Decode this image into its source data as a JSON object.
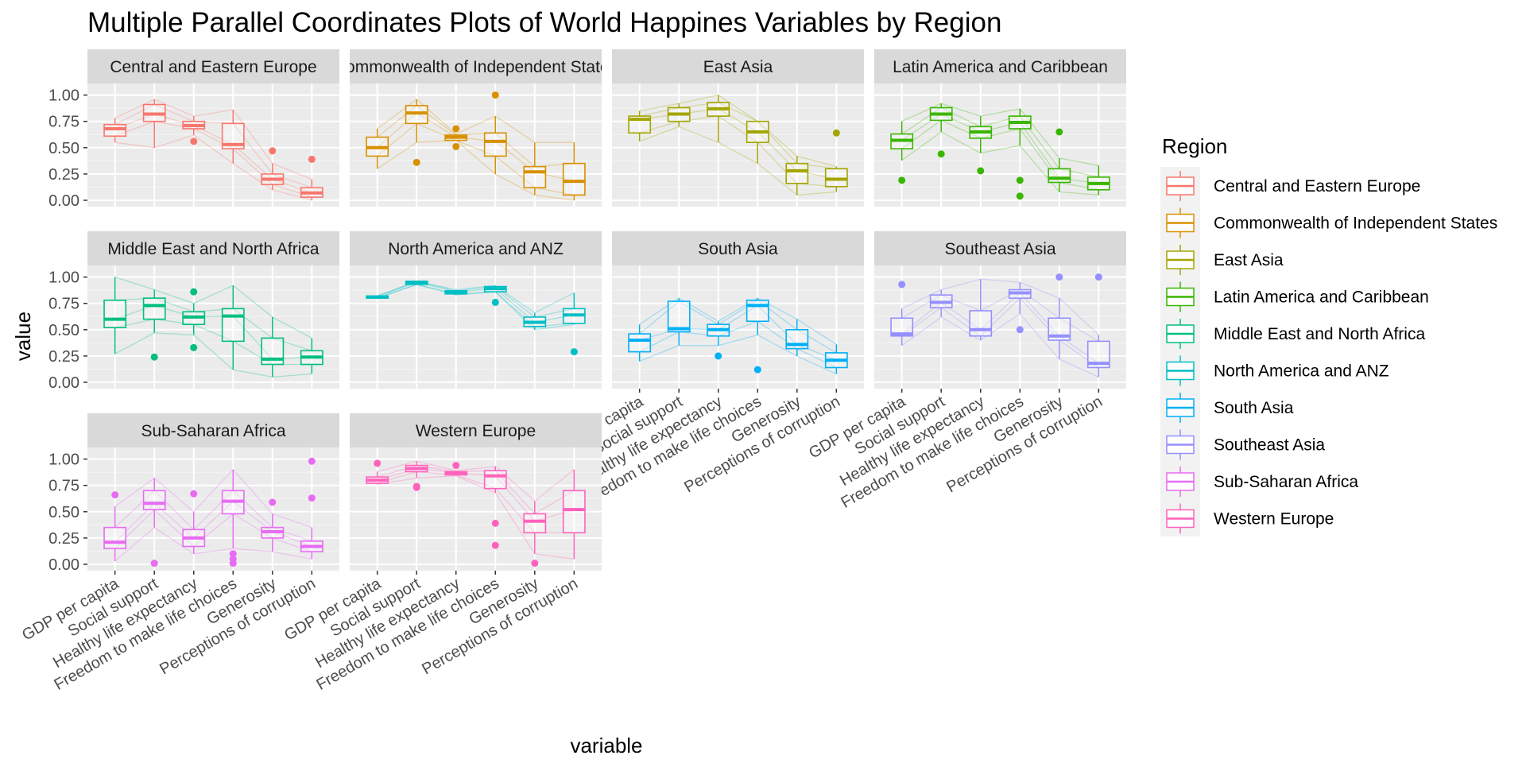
{
  "chart_data": {
    "type": "boxplot",
    "title": "Multiple Parallel Coordinates Plots of World Happines Variables by Region",
    "xlabel": "variable",
    "ylabel": "value",
    "ylim": [
      0,
      1.05
    ],
    "y_ticks": [
      "0.00",
      "0.25",
      "0.50",
      "0.75",
      "1.00"
    ],
    "categories": [
      "GDP per capita",
      "Social support",
      "Healthy life expectancy",
      "Freedom to make life choices",
      "Generosity",
      "Perceptions of corruption"
    ],
    "legend_title": "Region",
    "colors": {
      "Central and Eastern Europe": "#F8766D",
      "Commonwealth of Independent States": "#D89000",
      "East Asia": "#A3A500",
      "Latin America and Caribbean": "#39B600",
      "Middle East and North Africa": "#00BF7D",
      "North America and ANZ": "#00BFC4",
      "South Asia": "#00B0F6",
      "Southeast Asia": "#9590FF",
      "Sub-Saharan Africa": "#E76BF3",
      "Western Europe": "#FF62BC"
    },
    "panels": [
      {
        "region": "Central and Eastern Europe",
        "label": "Central and Eastern Europe",
        "boxes": [
          {
            "min": 0.55,
            "q1": 0.61,
            "median": 0.68,
            "q3": 0.72,
            "max": 0.78,
            "outliers": []
          },
          {
            "min": 0.5,
            "q1": 0.75,
            "median": 0.82,
            "q3": 0.91,
            "max": 0.96,
            "outliers": []
          },
          {
            "min": 0.62,
            "q1": 0.68,
            "median": 0.71,
            "q3": 0.75,
            "max": 0.8,
            "outliers": [
              0.56
            ]
          },
          {
            "min": 0.35,
            "q1": 0.49,
            "median": 0.53,
            "q3": 0.73,
            "max": 0.86,
            "outliers": []
          },
          {
            "min": 0.1,
            "q1": 0.15,
            "median": 0.2,
            "q3": 0.25,
            "max": 0.35,
            "outliers": [
              0.47
            ]
          },
          {
            "min": 0.0,
            "q1": 0.03,
            "median": 0.07,
            "q3": 0.12,
            "max": 0.2,
            "outliers": [
              0.39
            ]
          }
        ]
      },
      {
        "region": "Commonwealth of Independent States",
        "label": "Commonwealth of Independent States",
        "boxes": [
          {
            "min": 0.3,
            "q1": 0.42,
            "median": 0.5,
            "q3": 0.6,
            "max": 0.68,
            "outliers": []
          },
          {
            "min": 0.55,
            "q1": 0.73,
            "median": 0.83,
            "q3": 0.9,
            "max": 0.96,
            "outliers": [
              0.36
            ]
          },
          {
            "min": 0.57,
            "q1": 0.57,
            "median": 0.6,
            "q3": 0.62,
            "max": 0.63,
            "outliers": [
              0.68,
              0.51
            ]
          },
          {
            "min": 0.25,
            "q1": 0.42,
            "median": 0.56,
            "q3": 0.64,
            "max": 0.8,
            "outliers": [
              1.0
            ]
          },
          {
            "min": 0.05,
            "q1": 0.12,
            "median": 0.27,
            "q3": 0.32,
            "max": 0.55,
            "outliers": []
          },
          {
            "min": 0.0,
            "q1": 0.05,
            "median": 0.18,
            "q3": 0.35,
            "max": 0.55,
            "outliers": []
          }
        ]
      },
      {
        "region": "East Asia",
        "label": "East Asia",
        "boxes": [
          {
            "min": 0.56,
            "q1": 0.64,
            "median": 0.77,
            "q3": 0.8,
            "max": 0.85,
            "outliers": []
          },
          {
            "min": 0.7,
            "q1": 0.75,
            "median": 0.82,
            "q3": 0.88,
            "max": 0.92,
            "outliers": []
          },
          {
            "min": 0.55,
            "q1": 0.8,
            "median": 0.87,
            "q3": 0.93,
            "max": 1.0,
            "outliers": []
          },
          {
            "min": 0.35,
            "q1": 0.55,
            "median": 0.65,
            "q3": 0.75,
            "max": 0.75,
            "outliers": []
          },
          {
            "min": 0.05,
            "q1": 0.16,
            "median": 0.28,
            "q3": 0.35,
            "max": 0.42,
            "outliers": []
          },
          {
            "min": 0.08,
            "q1": 0.13,
            "median": 0.2,
            "q3": 0.3,
            "max": 0.32,
            "outliers": [
              0.64
            ]
          }
        ]
      },
      {
        "region": "Latin America and Caribbean",
        "label": "Latin America and Caribbean",
        "boxes": [
          {
            "min": 0.38,
            "q1": 0.49,
            "median": 0.57,
            "q3": 0.63,
            "max": 0.75,
            "outliers": [
              0.19
            ]
          },
          {
            "min": 0.65,
            "q1": 0.76,
            "median": 0.82,
            "q3": 0.88,
            "max": 0.92,
            "outliers": [
              0.44
            ]
          },
          {
            "min": 0.45,
            "q1": 0.59,
            "median": 0.65,
            "q3": 0.7,
            "max": 0.8,
            "outliers": [
              0.28
            ]
          },
          {
            "min": 0.52,
            "q1": 0.68,
            "median": 0.74,
            "q3": 0.8,
            "max": 0.87,
            "outliers": [
              0.19,
              0.04
            ]
          },
          {
            "min": 0.08,
            "q1": 0.17,
            "median": 0.21,
            "q3": 0.3,
            "max": 0.4,
            "outliers": [
              0.65
            ]
          },
          {
            "min": 0.05,
            "q1": 0.1,
            "median": 0.16,
            "q3": 0.22,
            "max": 0.33,
            "outliers": []
          }
        ]
      },
      {
        "region": "Middle East and North Africa",
        "label": "Middle East and North Africa",
        "boxes": [
          {
            "min": 0.27,
            "q1": 0.52,
            "median": 0.6,
            "q3": 0.78,
            "max": 1.0,
            "outliers": []
          },
          {
            "min": 0.47,
            "q1": 0.6,
            "median": 0.73,
            "q3": 0.8,
            "max": 0.88,
            "outliers": [
              0.24
            ]
          },
          {
            "min": 0.45,
            "q1": 0.55,
            "median": 0.62,
            "q3": 0.67,
            "max": 0.75,
            "outliers": [
              0.86,
              0.33
            ]
          },
          {
            "min": 0.12,
            "q1": 0.39,
            "median": 0.63,
            "q3": 0.7,
            "max": 0.92,
            "outliers": []
          },
          {
            "min": 0.05,
            "q1": 0.17,
            "median": 0.22,
            "q3": 0.42,
            "max": 0.62,
            "outliers": []
          },
          {
            "min": 0.08,
            "q1": 0.17,
            "median": 0.24,
            "q3": 0.3,
            "max": 0.42,
            "outliers": []
          }
        ]
      },
      {
        "region": "North America and ANZ",
        "label": "North America and ANZ",
        "boxes": [
          {
            "min": 0.8,
            "q1": 0.8,
            "median": 0.81,
            "q3": 0.82,
            "max": 0.82,
            "outliers": []
          },
          {
            "min": 0.93,
            "q1": 0.93,
            "median": 0.95,
            "q3": 0.96,
            "max": 0.96,
            "outliers": []
          },
          {
            "min": 0.83,
            "q1": 0.84,
            "median": 0.86,
            "q3": 0.87,
            "max": 0.88,
            "outliers": []
          },
          {
            "min": 0.86,
            "q1": 0.86,
            "median": 0.89,
            "q3": 0.91,
            "max": 0.92,
            "outliers": [
              0.76
            ]
          },
          {
            "min": 0.5,
            "q1": 0.53,
            "median": 0.57,
            "q3": 0.62,
            "max": 0.66,
            "outliers": []
          },
          {
            "min": 0.55,
            "q1": 0.56,
            "median": 0.64,
            "q3": 0.7,
            "max": 0.85,
            "outliers": [
              0.29
            ]
          }
        ]
      },
      {
        "region": "South Asia",
        "label": "South Asia",
        "boxes": [
          {
            "min": 0.2,
            "q1": 0.29,
            "median": 0.4,
            "q3": 0.46,
            "max": 0.55,
            "outliers": []
          },
          {
            "min": 0.35,
            "q1": 0.48,
            "median": 0.51,
            "q3": 0.77,
            "max": 0.8,
            "outliers": []
          },
          {
            "min": 0.35,
            "q1": 0.44,
            "median": 0.5,
            "q3": 0.55,
            "max": 0.58,
            "outliers": [
              0.25
            ]
          },
          {
            "min": 0.45,
            "q1": 0.58,
            "median": 0.73,
            "q3": 0.78,
            "max": 0.8,
            "outliers": [
              0.12
            ]
          },
          {
            "min": 0.25,
            "q1": 0.32,
            "median": 0.36,
            "q3": 0.5,
            "max": 0.6,
            "outliers": []
          },
          {
            "min": 0.08,
            "q1": 0.14,
            "median": 0.21,
            "q3": 0.28,
            "max": 0.36,
            "outliers": []
          }
        ]
      },
      {
        "region": "Southeast Asia",
        "label": "Southeast Asia",
        "boxes": [
          {
            "min": 0.35,
            "q1": 0.44,
            "median": 0.46,
            "q3": 0.61,
            "max": 0.7,
            "outliers": [
              0.93
            ]
          },
          {
            "min": 0.62,
            "q1": 0.71,
            "median": 0.76,
            "q3": 0.83,
            "max": 0.88,
            "outliers": []
          },
          {
            "min": 0.4,
            "q1": 0.44,
            "median": 0.5,
            "q3": 0.68,
            "max": 0.98,
            "outliers": []
          },
          {
            "min": 0.65,
            "q1": 0.8,
            "median": 0.85,
            "q3": 0.88,
            "max": 0.95,
            "outliers": [
              0.5
            ]
          },
          {
            "min": 0.22,
            "q1": 0.4,
            "median": 0.44,
            "q3": 0.61,
            "max": 0.8,
            "outliers": [
              1.0
            ]
          },
          {
            "min": 0.05,
            "q1": 0.14,
            "median": 0.18,
            "q3": 0.39,
            "max": 0.45,
            "outliers": [
              1.0
            ]
          }
        ]
      },
      {
        "region": "Sub-Saharan Africa",
        "label": "Sub-Saharan Africa",
        "boxes": [
          {
            "min": 0.03,
            "q1": 0.15,
            "median": 0.21,
            "q3": 0.35,
            "max": 0.55,
            "outliers": [
              0.66
            ]
          },
          {
            "min": 0.35,
            "q1": 0.52,
            "median": 0.58,
            "q3": 0.7,
            "max": 0.82,
            "outliers": [
              0.01
            ]
          },
          {
            "min": 0.1,
            "q1": 0.17,
            "median": 0.25,
            "q3": 0.33,
            "max": 0.5,
            "outliers": [
              0.67
            ]
          },
          {
            "min": 0.15,
            "q1": 0.48,
            "median": 0.6,
            "q3": 0.7,
            "max": 0.9,
            "outliers": [
              0.1,
              0.05,
              0.01
            ]
          },
          {
            "min": 0.12,
            "q1": 0.25,
            "median": 0.31,
            "q3": 0.35,
            "max": 0.48,
            "outliers": [
              0.59
            ]
          },
          {
            "min": 0.05,
            "q1": 0.12,
            "median": 0.17,
            "q3": 0.22,
            "max": 0.35,
            "outliers": [
              0.98,
              0.63
            ]
          }
        ]
      },
      {
        "region": "Western Europe",
        "label": "Western Europe",
        "boxes": [
          {
            "min": 0.76,
            "q1": 0.77,
            "median": 0.8,
            "q3": 0.83,
            "max": 0.88,
            "outliers": [
              0.96
            ]
          },
          {
            "min": 0.82,
            "q1": 0.88,
            "median": 0.91,
            "q3": 0.94,
            "max": 0.98,
            "outliers": [
              0.74,
              0.73
            ]
          },
          {
            "min": 0.84,
            "q1": 0.85,
            "median": 0.87,
            "q3": 0.88,
            "max": 0.89,
            "outliers": [
              0.94
            ]
          },
          {
            "min": 0.68,
            "q1": 0.72,
            "median": 0.84,
            "q3": 0.89,
            "max": 0.93,
            "outliers": [
              0.39,
              0.18
            ]
          },
          {
            "min": 0.1,
            "q1": 0.3,
            "median": 0.41,
            "q3": 0.48,
            "max": 0.6,
            "outliers": [
              0.01
            ]
          },
          {
            "min": 0.05,
            "q1": 0.3,
            "median": 0.52,
            "q3": 0.7,
            "max": 0.9,
            "outliers": []
          }
        ]
      }
    ]
  }
}
